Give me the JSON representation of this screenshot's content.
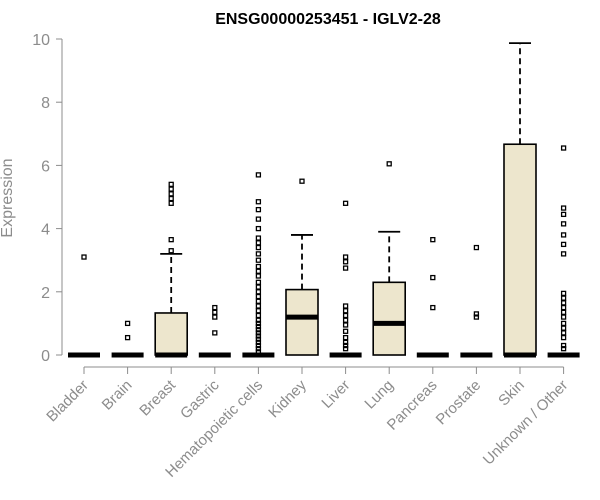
{
  "chart_data": {
    "type": "box",
    "title": "ENSG00000253451 - IGLV2-28",
    "ylabel": "Expression",
    "xlabel": "",
    "ylim": [
      0,
      10
    ],
    "yticks": [
      0,
      2,
      4,
      6,
      8,
      10
    ],
    "grid": false,
    "categories": [
      "Bladder",
      "Brain",
      "Breast",
      "Gastric",
      "Hematopoietic cells",
      "Kidney",
      "Liver",
      "Lung",
      "Pancreas",
      "Prostate",
      "Skin",
      "Unknown / Other"
    ],
    "boxes": [
      {
        "category": "Bladder",
        "q1": 0,
        "median": 0,
        "q3": 0,
        "whisker_low": 0,
        "whisker_high": 0,
        "outliers": [
          3.1
        ]
      },
      {
        "category": "Brain",
        "q1": 0,
        "median": 0,
        "q3": 0,
        "whisker_low": 0,
        "whisker_high": 0,
        "outliers": [
          0.55,
          1.0
        ]
      },
      {
        "category": "Breast",
        "q1": 0,
        "median": 0,
        "q3": 1.33,
        "whisker_low": 0,
        "whisker_high": 3.2,
        "outliers": [
          3.3,
          3.65,
          4.8,
          4.95,
          5.1,
          5.25,
          5.4
        ]
      },
      {
        "category": "Gastric",
        "q1": 0,
        "median": 0,
        "q3": 0,
        "whisker_low": 0,
        "whisker_high": 0,
        "outliers": [
          0.7,
          1.2,
          1.35,
          1.5
        ]
      },
      {
        "category": "Hematopoietic cells",
        "q1": 0,
        "median": 0,
        "q3": 0,
        "whisker_low": 0,
        "whisker_high": 0,
        "outliers": [
          0.1,
          0.2,
          0.3,
          0.4,
          0.5,
          0.6,
          0.7,
          0.8,
          0.9,
          1.0,
          1.1,
          1.25,
          1.4,
          1.55,
          1.7,
          1.85,
          2.0,
          2.15,
          2.3,
          2.5,
          2.65,
          2.8,
          3.0,
          3.2,
          3.4,
          3.55,
          3.7,
          4.0,
          4.3,
          4.6,
          4.85,
          5.7
        ]
      },
      {
        "category": "Kidney",
        "q1": 0,
        "median": 1.2,
        "q3": 2.07,
        "whisker_low": 0,
        "whisker_high": 3.8,
        "outliers": [
          5.5
        ]
      },
      {
        "category": "Liver",
        "q1": 0,
        "median": 0,
        "q3": 0,
        "whisker_low": 0,
        "whisker_high": 0,
        "outliers": [
          0.2,
          0.3,
          0.4,
          0.55,
          0.75,
          0.95,
          1.1,
          1.25,
          1.4,
          1.55,
          2.75,
          2.95,
          3.1,
          4.8
        ]
      },
      {
        "category": "Lung",
        "q1": 0,
        "median": 1.0,
        "q3": 2.3,
        "whisker_low": 0,
        "whisker_high": 3.9,
        "outliers": [
          6.05
        ]
      },
      {
        "category": "Pancreas",
        "q1": 0,
        "median": 0,
        "q3": 0,
        "whisker_low": 0,
        "whisker_high": 0,
        "outliers": [
          1.5,
          2.45,
          3.65
        ]
      },
      {
        "category": "Prostate",
        "q1": 0,
        "median": 0,
        "q3": 0,
        "whisker_low": 0,
        "whisker_high": 0,
        "outliers": [
          1.2,
          1.3,
          3.4
        ]
      },
      {
        "category": "Skin",
        "q1": 0,
        "median": 0,
        "q3": 6.67,
        "whisker_low": 0,
        "whisker_high": 9.87,
        "outliers": []
      },
      {
        "category": "Unknown / Other",
        "q1": 0,
        "median": 0,
        "q3": 0,
        "whisker_low": 0,
        "whisker_high": 0,
        "outliers": [
          0.2,
          0.3,
          0.55,
          0.7,
          0.85,
          1.0,
          1.2,
          1.35,
          1.5,
          1.65,
          1.8,
          1.95,
          3.2,
          3.5,
          3.8,
          4.15,
          4.45,
          4.65,
          6.55
        ]
      }
    ],
    "colors": {
      "box_fill": "#ede6cd",
      "axis": "#8c8c8c"
    }
  }
}
